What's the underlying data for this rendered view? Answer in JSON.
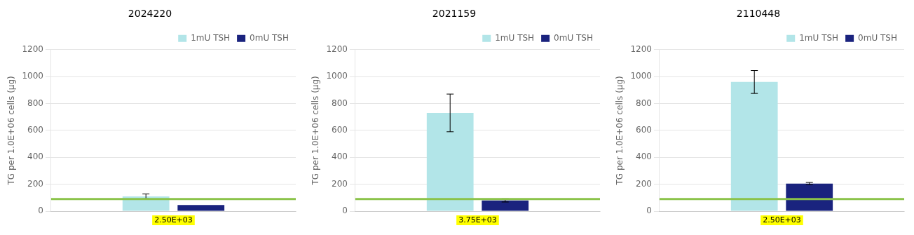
{
  "chart_data": [
    {
      "type": "bar",
      "title": "2024220",
      "ylabel": "TG per 1.0E+06 cells (µg)",
      "categories": [
        null
      ],
      "series": [
        {
          "name": "1mU TSH",
          "color": "#b2e5e8",
          "values": [
            110
          ],
          "errors": [
            18
          ]
        },
        {
          "name": "0mU TSH",
          "color": "#1a237e",
          "values": [
            45
          ],
          "errors": [
            0
          ]
        }
      ],
      "reference_line": {
        "value": 90,
        "color": "#8bc34a"
      },
      "annotation": {
        "text": "2.50E+03",
        "color": "yellow"
      },
      "ylim": [
        0,
        1200
      ],
      "yticks": [
        0,
        200,
        400,
        600,
        800,
        1000,
        1200
      ],
      "grid": true,
      "legend": "upper right",
      "tick_labels": "y"
    },
    {
      "type": "bar",
      "title": "2021159",
      "ylabel": "TG per 1.0E+06 cells (µg)",
      "categories": [
        null
      ],
      "series": [
        {
          "name": "1mU TSH",
          "color": "#b2e5e8",
          "values": [
            730
          ],
          "errors": [
            140
          ]
        },
        {
          "name": "0mU TSH",
          "color": "#1a237e",
          "values": [
            80
          ],
          "errors": [
            12
          ]
        }
      ],
      "reference_line": {
        "value": 90,
        "color": "#8bc34a"
      },
      "annotation": {
        "text": "3.75E+03",
        "color": "yellow"
      },
      "ylim": [
        0,
        1200
      ],
      "yticks": [
        0,
        200,
        400,
        600,
        800,
        1000,
        1200
      ],
      "grid": true,
      "legend": "upper right",
      "tick_labels": "y"
    },
    {
      "type": "bar",
      "title": "2110448",
      "ylabel": "TG per 1.0E+06 cells (µg)",
      "categories": [
        null
      ],
      "series": [
        {
          "name": "1mU TSH",
          "color": "#b2e5e8",
          "values": [
            960
          ],
          "errors": [
            85
          ]
        },
        {
          "name": "0mU TSH",
          "color": "#1a237e",
          "values": [
            205
          ],
          "errors": [
            8
          ]
        }
      ],
      "reference_line": {
        "value": 90,
        "color": "#8bc34a"
      },
      "annotation": {
        "text": "2.50E+03",
        "color": "yellow"
      },
      "ylim": [
        0,
        1200
      ],
      "yticks": [
        0,
        200,
        400,
        600,
        800,
        1000,
        1200
      ],
      "grid": true,
      "legend": "upper right",
      "tick_labels": "y"
    }
  ]
}
